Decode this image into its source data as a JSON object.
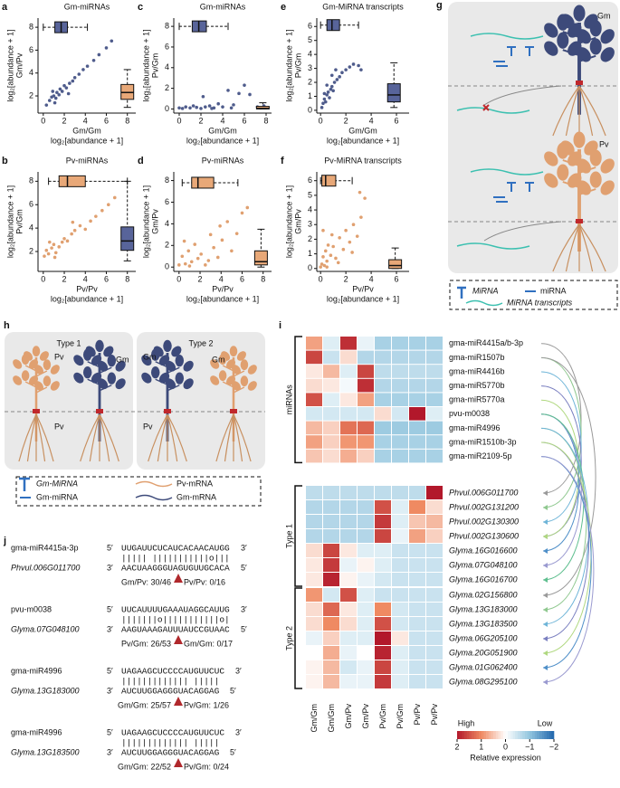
{
  "scatters": [
    {
      "letter": "a",
      "title": "Gm-miRNAs",
      "ylabel": "log₂[abundance + 1]",
      "ylabel2": "Gm/Pv",
      "xlabel": "Gm/Gm",
      "xlabel2": "log₂[abundance + 1]",
      "xlim": [
        -0.5,
        8.8
      ],
      "ylim": [
        0.5,
        8.8
      ],
      "xticks": [
        0,
        2,
        4,
        6,
        8
      ],
      "yticks": [
        2,
        4,
        6,
        8
      ],
      "color": "#4f5c8c",
      "x": [
        0.3,
        0.6,
        0.8,
        1,
        1.1,
        1.3,
        1.5,
        1.6,
        1.8,
        2,
        2.2,
        2.5,
        2.8,
        3,
        3.4,
        3.8,
        4.2,
        4.8,
        5.3,
        6,
        6.5,
        1.2,
        0.9,
        2.4
      ],
      "y": [
        1.2,
        1.6,
        1.9,
        2,
        1.4,
        2.3,
        2.1,
        2.6,
        2.4,
        2.9,
        2.7,
        3.1,
        3.3,
        3.6,
        3.9,
        4.3,
        4.6,
        5.1,
        5.6,
        6.2,
        6.8,
        1.8,
        2.4,
        2.2
      ],
      "top_box": {
        "pos": 8,
        "low": 0,
        "q1": 1.1,
        "median": 1.7,
        "q3": 2.3,
        "high": 4.2,
        "color": "#58649a"
      },
      "side_box": {
        "pos": 8,
        "low": 1,
        "q1": 1.7,
        "median": 2.3,
        "q3": 3,
        "high": 4.3,
        "color": "#e8a878"
      }
    },
    {
      "letter": "c",
      "title": "Gm-miRNAs",
      "ylabel": "log₂[abundance + 1]",
      "ylabel2": "Pv/Gm",
      "xlabel": "Gm/Gm",
      "xlabel2": "log₂[abundance + 1]",
      "xlim": [
        -0.5,
        8.5
      ],
      "ylim": [
        -0.4,
        8.8
      ],
      "xticks": [
        0,
        2,
        4,
        6,
        8
      ],
      "yticks": [
        0,
        2,
        4,
        6,
        8
      ],
      "color": "#4f5c8c",
      "x": [
        0,
        0.3,
        0.6,
        1,
        1.3,
        1.6,
        2,
        2.4,
        2.8,
        3.2,
        3.6,
        4,
        4.5,
        5,
        5.5,
        6,
        6.5,
        7.2,
        7.5,
        7.8,
        3,
        2.2,
        4.8
      ],
      "y": [
        0.1,
        0.05,
        0.2,
        0.1,
        0.3,
        0.15,
        0.05,
        0.2,
        0.3,
        0.1,
        0.5,
        0.2,
        1.8,
        0.4,
        1.5,
        2.3,
        1.4,
        0.2,
        0.1,
        0.3,
        0.05,
        1.2,
        0.1
      ],
      "top_box": {
        "pos": 8,
        "low": 0,
        "q1": 1.2,
        "median": 1.8,
        "q3": 2.5,
        "high": 4.5,
        "color": "#58649a"
      },
      "side_box": {
        "pos": 7.7,
        "low": 0,
        "q1": 0,
        "median": 0.05,
        "q3": 0.25,
        "high": 0.6,
        "color": "#e8a878"
      }
    },
    {
      "letter": "e",
      "title": "Gm-MiRNA transcripts",
      "ylabel": "log₂[abundance + 1]",
      "ylabel2": "Pv/Gm",
      "xlabel": "Gm/Gm",
      "xlabel2": "log₂[abundance + 1]",
      "xlim": [
        -0.3,
        7
      ],
      "ylim": [
        -0.2,
        6.6
      ],
      "xticks": [
        0,
        2,
        4,
        6
      ],
      "yticks": [
        0,
        1,
        2,
        3,
        4,
        5,
        6
      ],
      "color": "#4f5c8c",
      "x": [
        0.1,
        0.2,
        0.3,
        0.4,
        0.5,
        0.6,
        0.7,
        0.8,
        0.9,
        1,
        1.1,
        1.3,
        1.5,
        1.7,
        2,
        2.3,
        2.6,
        3,
        3.2,
        0.5,
        0.9,
        1.2,
        0.3
      ],
      "y": [
        0.2,
        0.5,
        0.8,
        0.6,
        1.1,
        1.3,
        0.9,
        1.5,
        1.7,
        1.4,
        2,
        2.2,
        2.4,
        2.7,
        2.9,
        3.1,
        3.3,
        3.2,
        2.9,
        1.8,
        2.5,
        2.9,
        1.2
      ],
      "top_box": {
        "pos": 6.1,
        "low": 0,
        "q1": 0.5,
        "median": 0.9,
        "q3": 1.5,
        "high": 3,
        "color": "#58649a"
      },
      "side_box": {
        "pos": 5.8,
        "low": 0.2,
        "q1": 0.6,
        "median": 1.1,
        "q3": 1.9,
        "high": 3.4,
        "color": "#58649a"
      }
    },
    {
      "letter": "b",
      "title": "Pv-miRNAs",
      "ylabel": "log₂[abundance + 1]",
      "ylabel2": "Pv/Gm",
      "xlabel": "Pv/Pv",
      "xlabel2": "log₂[abundance + 1]",
      "xlim": [
        -0.5,
        8.8
      ],
      "ylim": [
        0.3,
        8.8
      ],
      "xticks": [
        0,
        2,
        4,
        6,
        8
      ],
      "yticks": [
        2,
        4,
        6,
        8
      ],
      "color": "#e0a070",
      "x": [
        0.1,
        0.3,
        0.5,
        0.8,
        1,
        1.2,
        1.5,
        1.8,
        2,
        2.3,
        2.7,
        3,
        3.5,
        4,
        4.5,
        5,
        5.6,
        6.2,
        6.8,
        1.1,
        0.6,
        2.8
      ],
      "y": [
        1.6,
        2.1,
        1.8,
        2.3,
        2.6,
        1.9,
        2.4,
        2.8,
        3.1,
        2.9,
        3.5,
        3.8,
        4.2,
        3.9,
        4.6,
        5,
        5.5,
        6,
        6.6,
        1.5,
        2.8,
        4.5
      ],
      "top_box": {
        "pos": 8,
        "low": 0.5,
        "q1": 1.5,
        "median": 2.3,
        "q3": 4,
        "high": 8,
        "color": "#e8a878"
      },
      "side_box": {
        "pos": 8,
        "low": 1.2,
        "q1": 2.1,
        "median": 2.9,
        "q3": 4.1,
        "high": 8,
        "color": "#58649a"
      }
    },
    {
      "letter": "d",
      "title": "Pv-miRNAs",
      "ylabel": "log₂[abundance + 1]",
      "ylabel2": "Gm/Pv",
      "xlabel": "Pv/Pv",
      "xlabel2": "log₂[abundance + 1]",
      "xlim": [
        -0.5,
        8.8
      ],
      "ylim": [
        -0.4,
        8.8
      ],
      "xticks": [
        0,
        2,
        4,
        6,
        8
      ],
      "yticks": [
        0,
        2,
        4,
        6,
        8
      ],
      "color": "#e0a070",
      "x": [
        0,
        0.3,
        0.6,
        0.9,
        1.2,
        1.5,
        1.8,
        2.1,
        2.5,
        3,
        3.3,
        3.7,
        4.1,
        4.6,
        5,
        5.5,
        6,
        6.5,
        0.5,
        2.8,
        1,
        3.9
      ],
      "y": [
        0.2,
        1,
        0.3,
        1.5,
        0.5,
        2.1,
        0.8,
        1.2,
        0.2,
        3,
        1.8,
        0.9,
        2.5,
        4.2,
        1.5,
        3.1,
        5,
        5.5,
        2.4,
        0.6,
        0.1,
        3.8
      ],
      "top_box": {
        "pos": 7.8,
        "low": 0.3,
        "q1": 1.2,
        "median": 1.8,
        "q3": 3.3,
        "high": 5.6,
        "color": "#e8a878"
      },
      "side_box": {
        "pos": 7.8,
        "low": 0,
        "q1": 0.2,
        "median": 0.5,
        "q3": 1.5,
        "high": 3.5,
        "color": "#e8a878"
      }
    },
    {
      "letter": "f",
      "title": "Pv-MiRNA transcripts",
      "ylabel": "log₂[abundance + 1]",
      "ylabel2": "Gm/Pv",
      "xlabel": "Pv/Pv",
      "xlabel2": "log₂[abundance + 1]",
      "xlim": [
        -0.3,
        7
      ],
      "ylim": [
        -0.2,
        6.6
      ],
      "xticks": [
        0,
        2,
        4,
        6
      ],
      "yticks": [
        0,
        1,
        2,
        3,
        4,
        5,
        6
      ],
      "color": "#e0a070",
      "x": [
        0,
        0.1,
        0.2,
        0.3,
        0.4,
        0.5,
        0.6,
        0.8,
        1,
        1.2,
        1.5,
        1.8,
        2,
        2.3,
        2.6,
        2.9,
        3.2,
        3.5,
        0.2,
        0.5,
        0.9,
        1.4,
        2.5,
        3.1
      ],
      "y": [
        0.1,
        0.3,
        0.8,
        0.2,
        1.2,
        0.5,
        1.6,
        0.9,
        1.5,
        0.7,
        2.1,
        1.3,
        2.6,
        1.8,
        3,
        2.2,
        3.5,
        4.8,
        2.6,
        0.1,
        2.3,
        0.4,
        1.1,
        5.2
      ],
      "top_box": {
        "pos": 6,
        "low": 0,
        "q1": 0.1,
        "median": 0.4,
        "q3": 1.2,
        "high": 2.5,
        "color": "#e8a878"
      },
      "side_box": {
        "pos": 5.9,
        "low": 0,
        "q1": 0,
        "median": 0.2,
        "q3": 0.6,
        "high": 1.4,
        "color": "#e8a878"
      }
    }
  ],
  "panel_g": {
    "letter": "g",
    "gm": "Gm",
    "pv": "Pv",
    "legend": [
      "MiRNA",
      "miRNA",
      "MiRNA transcripts"
    ]
  },
  "panel_h": {
    "letter": "h",
    "type1": "Type 1",
    "type2": "Type 2",
    "labels1": [
      "Pv",
      "Gm",
      "Pv"
    ],
    "labels2": [
      "Gm",
      "Gm",
      "Pv"
    ],
    "legend": [
      "Gm-MiRNA",
      "Pv-mRNA",
      "Gm-miRNA",
      "Gm-mRNA"
    ]
  },
  "panel_i": {
    "letter": "i",
    "columns": [
      "Gm/Gm",
      "Gm/Gm",
      "Gm/Pv",
      "Gm/Pv",
      "Pv/Gm",
      "Pv/Gm",
      "Pv/Pv",
      "Pv/Pv"
    ],
    "groups": [
      {
        "name": "miRNAs",
        "rows": [
          "gma-miR4415a/b-3p",
          "gma-miR1507b",
          "gma-miR4416b",
          "gma-miR5770b",
          "gma-miR5770a",
          "pvu-m0038",
          "gma-miR4996",
          "gma-miR1510b-3p",
          "gma-miR2109-5p"
        ],
        "values": [
          [
            0.8,
            -0.3,
            1.8,
            -0.2,
            -0.8,
            -0.8,
            -0.8,
            -0.8
          ],
          [
            1.6,
            -0.5,
            0.3,
            -0.7,
            -0.7,
            -0.7,
            -0.7,
            -0.7
          ],
          [
            0.2,
            0.6,
            -0.3,
            1.6,
            -0.6,
            -0.6,
            -0.6,
            -0.6
          ],
          [
            0.3,
            0.2,
            -0.1,
            1.8,
            -0.7,
            -0.7,
            -0.7,
            -0.7
          ],
          [
            1.5,
            -0.3,
            0.2,
            0.8,
            -0.8,
            -0.8,
            -0.8,
            -0.8
          ],
          [
            -0.4,
            -0.4,
            -0.4,
            -0.4,
            0.3,
            -0.4,
            2,
            -0.3
          ],
          [
            0.6,
            0.4,
            1.2,
            1.3,
            -0.9,
            -0.9,
            -0.9,
            -0.9
          ],
          [
            0.8,
            0.4,
            0.9,
            0.9,
            -0.8,
            -0.8,
            -0.8,
            -0.8
          ],
          [
            0.5,
            0.3,
            0.7,
            0.4,
            -0.8,
            -0.8,
            -0.8,
            -0.8
          ]
        ]
      },
      {
        "name": "Type 1",
        "rows": [
          "Phvul.006G011700",
          "Phvul.002G131200",
          "Phvul.002G130300",
          "Phvul.002G130600",
          "Glyma.16G016600",
          "Glyma.07G048100",
          "Glyma.16G016700"
        ],
        "values": [
          [
            -0.6,
            -0.6,
            -0.6,
            -0.6,
            -0.6,
            -0.6,
            -0.6,
            2
          ],
          [
            -0.7,
            -0.7,
            -0.7,
            -0.7,
            1.5,
            -0.3,
            1,
            0.3
          ],
          [
            -0.7,
            -0.7,
            -0.7,
            -0.7,
            1.7,
            -0.3,
            0.5,
            0.6
          ],
          [
            -0.7,
            -0.7,
            -0.7,
            -0.7,
            1.6,
            -0.2,
            0.8,
            0.4
          ],
          [
            0.3,
            1.6,
            0.2,
            -0.3,
            -0.3,
            -0.5,
            -0.5,
            -0.5
          ],
          [
            0.2,
            1.7,
            -0.2,
            0.1,
            -0.3,
            -0.5,
            -0.5,
            -0.5
          ],
          [
            0.2,
            1.9,
            0.1,
            -0.2,
            -0.4,
            -0.5,
            -0.5,
            -0.5
          ]
        ]
      },
      {
        "name": "Type 2",
        "rows": [
          "Glyma.02G156800",
          "Glyma.13G183000",
          "Glyma.13G183500",
          "Glyma.06G205100",
          "Glyma.20G051900",
          "Glyma.01G062400",
          "Glyma.08G295100"
        ],
        "values": [
          [
            0.9,
            -0.4,
            1.5,
            -0.3,
            -0.5,
            -0.5,
            -0.5,
            -0.5
          ],
          [
            0.3,
            1.3,
            0.2,
            -0.3,
            1,
            -0.4,
            -0.5,
            -0.5
          ],
          [
            0.3,
            1,
            0.3,
            -0.3,
            1.5,
            -0.4,
            -0.5,
            -0.5
          ],
          [
            -0.2,
            0.4,
            -0.3,
            -0.3,
            2,
            0.2,
            -0.5,
            -0.5
          ],
          [
            0,
            0.7,
            -0.2,
            0,
            1.9,
            -0.3,
            -0.5,
            -0.5
          ],
          [
            0.1,
            0.6,
            -0.4,
            -0.2,
            1.6,
            -0.3,
            -0.5,
            -0.5
          ],
          [
            0.1,
            0.6,
            -0.2,
            -0.2,
            1.7,
            -0.3,
            -0.5,
            -0.5
          ]
        ]
      }
    ],
    "links": [
      [
        0,
        0
      ],
      [
        1,
        1
      ],
      [
        2,
        2
      ],
      [
        3,
        3
      ],
      [
        4,
        3
      ],
      [
        5,
        4
      ],
      [
        5,
        5
      ],
      [
        5,
        6
      ],
      [
        1,
        7
      ],
      [
        6,
        8
      ],
      [
        6,
        9
      ],
      [
        7,
        10
      ],
      [
        7,
        11
      ],
      [
        8,
        12
      ],
      [
        8,
        13
      ]
    ],
    "link_colors": [
      "#9a9a9a",
      "#8fc88f",
      "#6fb5d8",
      "#7a7fc0",
      "#b0d880",
      "#4f8fc8",
      "#9a9ad0",
      "#5fbf8f"
    ],
    "high": "High",
    "low": "Low",
    "colorbar_label": "Relative expression",
    "clim": [
      2,
      -2
    ],
    "cticks": [
      2,
      1,
      0,
      {
        "value": -1,
        "label": "−1"
      },
      {
        "value": -2,
        "label": "−2"
      }
    ],
    "colors": [
      "#b2182b",
      "#ef8a62",
      "#ffffff",
      "#92c5de",
      "#2166ac"
    ]
  },
  "panel_j": {
    "letter": "j",
    "five": "5′",
    "three": "3′",
    "blocks": [
      {
        "mirna": "gma-miR4415a-3p",
        "mirna_seq": "UUGAUUCUCAUCACAACAUGG",
        "pairing": "||||| |||||||||||o|||",
        "target": "Phvul.006G011700",
        "target_seq": "AACUAAGGGUAGUGUUGCACA",
        "left": "Gm/Pv: 30/46",
        "right": "Pv/Pv: 0/16"
      },
      {
        "mirna": "pvu-m0038",
        "mirna_seq": "UUCAUUUUGAAAUAGGCAUUG",
        "pairing": "|||||||o|||||||||||o|",
        "target": "Glyma.07G048100",
        "target_seq": "AAGUAAAGAUUUAUCCGUAAC",
        "left": "Pv/Gm: 26/53",
        "right": "Gm/Gm: 0/17"
      },
      {
        "mirna": "gma-miR4996",
        "mirna_seq": "UAGAAGCUCCCCAUGUUCUC",
        "pairing": "||||||||||||| |||||",
        "target": "Glyma.13G183000",
        "target_seq": "AUCUUGGAGGGUACAGGAG",
        "left": "Gm/Gm: 25/57",
        "right": "Pv/Gm: 1/26"
      },
      {
        "mirna": "gma-miR4996",
        "mirna_seq": "UAGAAGCUCCCCAUGUUCUC",
        "pairing": "||||||||||||| |||||",
        "target": "Glyma.13G183500",
        "target_seq": "AUCUUGGAGGGUACAGGAG",
        "left": "Gm/Gm: 22/52",
        "right": "Pv/Gm: 0/24"
      }
    ]
  }
}
